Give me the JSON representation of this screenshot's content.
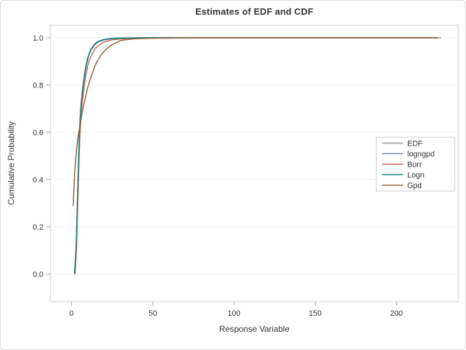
{
  "chart_data": {
    "type": "line",
    "title": "Estimates of EDF and CDF",
    "xlabel": "Response Variable",
    "ylabel": "Cumulative Probability",
    "xlim": [
      -13,
      238
    ],
    "ylim": [
      -0.117,
      1.053
    ],
    "xticks": [
      0,
      50,
      100,
      150,
      200
    ],
    "xtick_labels": [
      "0",
      "50",
      "100",
      "150",
      "200"
    ],
    "yticks": [
      0.0,
      0.2,
      0.4,
      0.6,
      0.8,
      1.0
    ],
    "ytick_labels": [
      "0.0",
      "0.2",
      "0.4",
      "0.6",
      "0.8",
      "1.0"
    ],
    "grid": "horizontal-only",
    "grid_color": "#f0f0f0",
    "frame_color": "#cdcdcd",
    "tick_color": "#adadad",
    "legend_position": "inside-right",
    "series": [
      {
        "name": "EDF",
        "color": "#a9a9a9",
        "width": 2,
        "x": [
          2.1,
          3,
          3.5,
          4,
          4.5,
          5,
          5.5,
          6,
          7,
          8,
          9,
          10,
          11,
          12,
          14,
          16,
          20,
          25,
          30,
          40,
          50,
          227
        ],
        "y": [
          0,
          0.13,
          0.25,
          0.38,
          0.5,
          0.6,
          0.67,
          0.715,
          0.785,
          0.84,
          0.88,
          0.912,
          0.933,
          0.95,
          0.97,
          0.982,
          0.992,
          0.9965,
          0.998,
          0.9995,
          1,
          1
        ]
      },
      {
        "name": "logngpd",
        "color": "#6e80b2",
        "width": 1.5,
        "x": [
          2.1,
          3,
          3.5,
          4,
          4.5,
          5,
          5.5,
          6,
          7,
          8,
          9,
          10,
          11,
          12,
          14,
          16,
          20,
          25,
          30,
          40,
          50,
          225
        ],
        "y": [
          0,
          0.12,
          0.24,
          0.37,
          0.49,
          0.595,
          0.665,
          0.71,
          0.78,
          0.836,
          0.877,
          0.909,
          0.93,
          0.948,
          0.968,
          0.98,
          0.991,
          0.996,
          0.9978,
          0.9992,
          1,
          1
        ]
      },
      {
        "name": "Burr",
        "color": "#c0685e",
        "width": 1.5,
        "x": [
          2.2,
          3,
          3.5,
          4,
          4.5,
          5,
          5.5,
          6,
          7,
          8,
          9,
          10,
          11,
          12,
          14,
          16,
          20,
          25,
          30,
          40,
          60,
          100,
          225
        ],
        "y": [
          0,
          0.1,
          0.21,
          0.33,
          0.45,
          0.56,
          0.63,
          0.68,
          0.75,
          0.805,
          0.848,
          0.88,
          0.904,
          0.922,
          0.948,
          0.964,
          0.982,
          0.991,
          0.995,
          0.998,
          0.9995,
          1,
          1
        ]
      },
      {
        "name": "Logn",
        "color": "#12837a",
        "width": 1.5,
        "x": [
          1.8,
          2.5,
          3,
          3.5,
          4,
          4.5,
          5,
          5.5,
          6,
          7,
          8,
          9,
          10,
          11,
          12,
          14,
          16,
          20,
          25,
          30,
          40,
          50,
          225
        ],
        "y": [
          0.005,
          0.07,
          0.15,
          0.27,
          0.4,
          0.52,
          0.62,
          0.685,
          0.73,
          0.795,
          0.845,
          0.885,
          0.915,
          0.935,
          0.952,
          0.972,
          0.983,
          0.993,
          0.997,
          0.9985,
          0.9995,
          1,
          1
        ]
      },
      {
        "name": "Gpd",
        "color": "#92603d",
        "width": 1.5,
        "x": [
          1,
          1.5,
          2,
          2.5,
          3,
          4,
          5,
          6,
          7,
          8,
          10,
          12,
          15,
          18,
          21,
          25,
          30,
          35,
          40,
          50,
          70,
          100,
          150,
          225
        ],
        "y": [
          0.29,
          0.36,
          0.43,
          0.48,
          0.52,
          0.58,
          0.62,
          0.66,
          0.7,
          0.73,
          0.79,
          0.835,
          0.89,
          0.925,
          0.95,
          0.97,
          0.988,
          0.993,
          0.996,
          0.998,
          0.9993,
          1,
          1,
          1
        ]
      }
    ]
  }
}
